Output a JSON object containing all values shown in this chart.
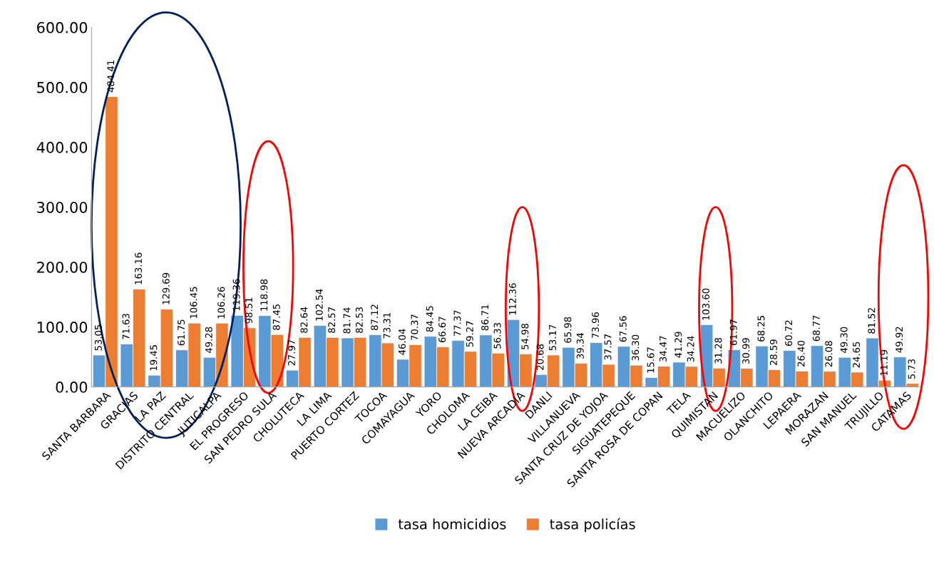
{
  "chart_data": {
    "type": "bar",
    "categories": [
      "SANTA BARBARA",
      "GRACIAS",
      "LA PAZ",
      "DISTRITO CENTRAL",
      "JUTICALPA",
      "EL PROGRESO",
      "SAN PEDRO SULA",
      "CHOLUTECA",
      "LA LIMA",
      "PUERTO CORTEZ",
      "TOCOA",
      "COMAYAGUA",
      "YORO",
      "CHOLOMA",
      "LA CEIBA",
      "NUEVA ARCADIA",
      "DANLI",
      "VILLANUEVA",
      "SANTA CRUZ DE YOJOA",
      "SIGUATEPEQUE",
      "SANTA ROSA DE COPAN",
      "TELA",
      "QUIMISTAN",
      "MACUELIZO",
      "OLANCHITO",
      "LEPAERA",
      "MORAZAN",
      "SAN MANUEL",
      "TRUJILLO",
      "CATAMAS"
    ],
    "series": [
      {
        "name": "tasa homicidios",
        "color": "#5b9bd5",
        "values": [
          53.05,
          71.63,
          19.45,
          61.75,
          49.28,
          119.36,
          118.98,
          27.97,
          102.54,
          81.74,
          87.12,
          46.04,
          84.45,
          77.37,
          86.71,
          112.36,
          20.68,
          65.98,
          73.96,
          67.56,
          15.67,
          41.29,
          103.6,
          61.97,
          68.25,
          60.72,
          68.77,
          49.3,
          81.52,
          49.92
        ],
        "value_labels": [
          "53.05",
          "71.63",
          "19.45",
          "61.75",
          "49.28",
          "119.36",
          "118.98",
          "27.97",
          "102.54",
          "81.74",
          "87.12",
          "46.04",
          "84.45",
          "77.37",
          "86.71",
          "112.36",
          "20.68",
          "65.98",
          "73.96",
          "67.56",
          "15.67",
          "41.29",
          "103.60",
          "61.97",
          "68.25",
          "60.72",
          "68.77",
          "49.30",
          "81.52",
          "49.92"
        ]
      },
      {
        "name": "tasa policías",
        "color": "#ed7d31",
        "values": [
          484.41,
          163.16,
          129.69,
          106.45,
          106.26,
          98.51,
          87.45,
          82.64,
          82.57,
          82.53,
          73.31,
          70.37,
          66.67,
          59.27,
          56.33,
          54.98,
          53.17,
          39.34,
          37.57,
          36.3,
          34.47,
          34.24,
          31.28,
          30.99,
          28.59,
          26.4,
          26.08,
          24.65,
          11.19,
          5.73
        ],
        "value_labels": [
          "484.41",
          "163.16",
          "129.69",
          "106.45",
          "106.26",
          "98.51",
          "87.45",
          "82.64",
          "82.57",
          "82.53",
          "73.31",
          "70.37",
          "66.67",
          "59.27",
          "56.33",
          "54.98",
          "53.17",
          "39.34",
          "37.57",
          "36.30",
          "34.47",
          "34.24",
          "31.28",
          "30.99",
          "28.59",
          "26.40",
          "26.08",
          "24.65",
          "11.19",
          "5.73"
        ]
      }
    ],
    "ylim": [
      0,
      600
    ],
    "yticks": [
      {
        "value": 0,
        "label": "0.00"
      },
      {
        "value": 100,
        "label": "100.00"
      },
      {
        "value": 200,
        "label": "200.00"
      },
      {
        "value": 300,
        "label": "300.00"
      },
      {
        "value": 400,
        "label": "400.00"
      },
      {
        "value": 500,
        "label": "500.00"
      },
      {
        "value": 600,
        "label": "600.00"
      }
    ],
    "grid": false,
    "legend": "bottom"
  }
}
